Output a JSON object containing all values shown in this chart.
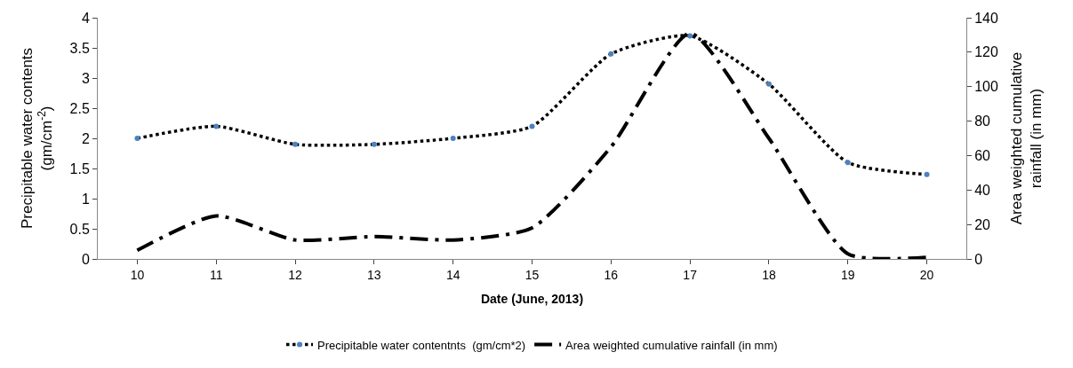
{
  "chart_data": {
    "type": "line",
    "xlabel": "Date (June, 2013)",
    "ylabel": "Precipitable water contents\n(gm/cm$^{-2}$)",
    "y2label": "Area weighted cumulative\nrainfall (in mm)",
    "categories": [
      "10",
      "11",
      "12",
      "13",
      "14",
      "15",
      "16",
      "17",
      "18",
      "19",
      "20"
    ],
    "series": [
      {
        "name": "Precipitable water contentnts  (gm/cm*2)",
        "color": "#4f81bd",
        "marker": "circle",
        "line_style": "dotted",
        "values": [
          2.0,
          2.2,
          1.9,
          1.9,
          2.0,
          2.2,
          3.4,
          3.7,
          2.9,
          1.6,
          1.4
        ]
      },
      {
        "name": "Area weighted cumulative rainfall (in mm)",
        "color": "#000000",
        "axis": "y2",
        "marker": "none",
        "line_style": "longdashdot",
        "values": [
          5,
          25,
          11,
          13,
          11,
          18,
          65,
          131,
          70,
          3,
          1
        ]
      }
    ],
    "ylim": [
      0,
      4
    ],
    "yticks": [
      0,
      0.5,
      1,
      1.5,
      2,
      2.5,
      3,
      3.5,
      4
    ],
    "y2lim": [
      0,
      140
    ],
    "y2ticks": [
      0,
      20,
      40,
      60,
      80,
      100,
      120,
      140
    ],
    "grid": false,
    "legend": "bottom"
  }
}
